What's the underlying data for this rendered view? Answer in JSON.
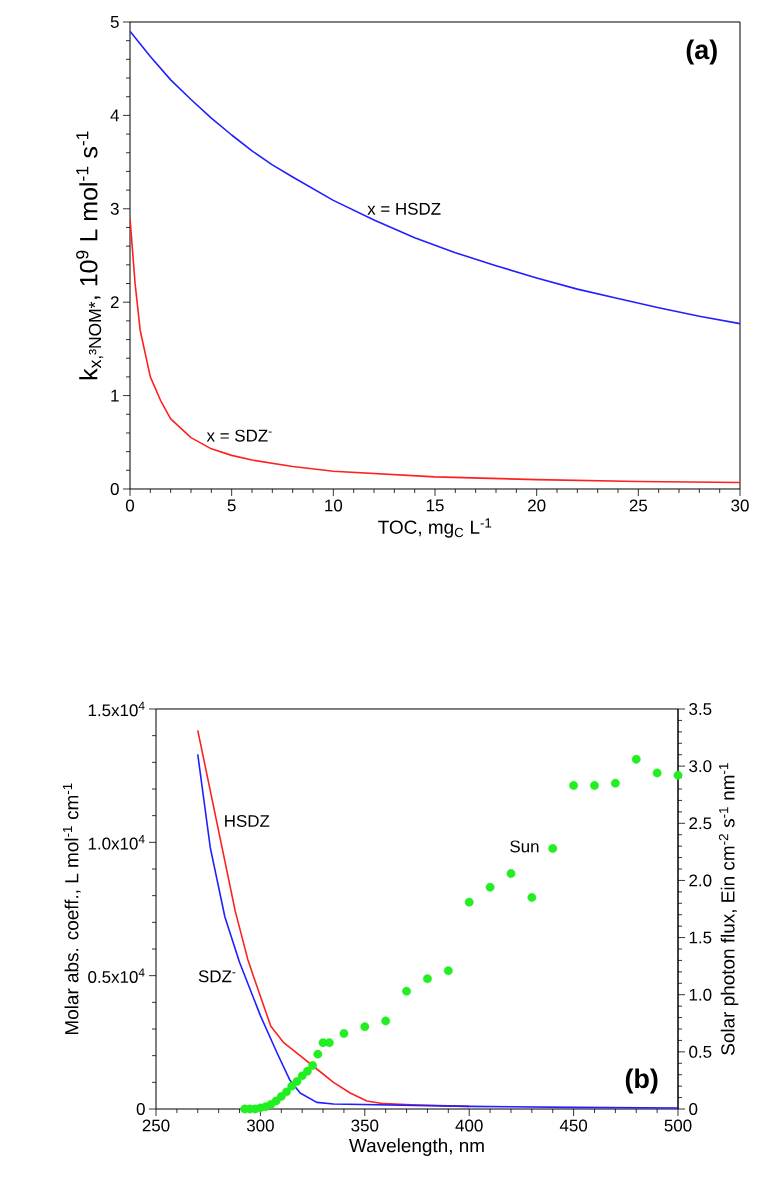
{
  "chart_data": [
    {
      "type": "line",
      "xlabel": "TOC, mg$_{C}$ L$^{-1}$",
      "ylabel": "k$_{x,³NOM*}$, 10$^{9}$ L mol$^{-1}$ s$^{-1}$",
      "xlim": [
        0,
        30
      ],
      "ylim": [
        0,
        5
      ],
      "xticks": [
        0,
        5,
        10,
        15,
        20,
        25,
        30
      ],
      "yticks": [
        0,
        1,
        2,
        3,
        4,
        5
      ],
      "annotations": [
        "(a)"
      ],
      "series": [
        {
          "name": "x = HSDZ",
          "color": "#2020ff",
          "x": [
            0,
            1,
            2,
            3,
            4,
            5,
            6,
            7,
            8,
            10,
            12,
            14,
            16,
            18,
            20,
            22,
            24,
            26,
            28,
            30
          ],
          "values": [
            4.9,
            4.63,
            4.38,
            4.17,
            3.97,
            3.79,
            3.62,
            3.47,
            3.34,
            3.09,
            2.88,
            2.69,
            2.53,
            2.39,
            2.26,
            2.14,
            2.04,
            1.94,
            1.85,
            1.77
          ]
        },
        {
          "name": "x = SDZ$^{-}$",
          "color": "#ff2020",
          "x": [
            0,
            0.25,
            0.5,
            1,
            1.5,
            2,
            3,
            4,
            5,
            6,
            8,
            10,
            15,
            20,
            25,
            30
          ],
          "values": [
            2.9,
            2.2,
            1.7,
            1.2,
            0.95,
            0.75,
            0.55,
            0.43,
            0.36,
            0.31,
            0.24,
            0.19,
            0.13,
            0.1,
            0.08,
            0.07
          ]
        }
      ]
    },
    {
      "type": "line",
      "xlabel": "Wavelength, nm",
      "ylabel": "Molar abs. coeff., L mol$^{-1}$ cm$^{-1}$",
      "y2label": "Solar photon flux, Ein cm$^{-2}$ s$^{-1}$ nm$^{-1}$",
      "xlim": [
        250,
        500
      ],
      "ylim": [
        0,
        15000
      ],
      "y2lim": [
        0,
        3.5
      ],
      "xticks": [
        250,
        300,
        350,
        400,
        450,
        500
      ],
      "yticks": [
        0,
        {
          "value": 5000,
          "label": "0.5x10$^{4}$"
        },
        {
          "value": 10000,
          "label": "1.0x10$^{4}$"
        },
        {
          "value": 15000,
          "label": "1.5x10$^{4}$"
        }
      ],
      "y2ticks": [
        0,
        0.5,
        {
          "value": 1,
          "label": "1.0"
        },
        1.5,
        {
          "value": 2,
          "label": "2.0"
        },
        2.5,
        {
          "value": 3,
          "label": "3.0"
        },
        3.5
      ],
      "annotations": [
        "(b)"
      ],
      "series": [
        {
          "name": "HSDZ",
          "color": "#ff2020",
          "x": [
            270,
            279,
            288,
            294,
            297,
            305,
            311,
            319,
            327,
            335,
            343,
            351,
            359,
            375,
            400
          ],
          "values": [
            14200,
            10800,
            7400,
            5600,
            4900,
            3100,
            2500,
            2000,
            1500,
            1000,
            600,
            300,
            200,
            150,
            100
          ]
        },
        {
          "name": "SDZ$^{-}$",
          "color": "#2020ff",
          "x": [
            270,
            276,
            283,
            290,
            300,
            308,
            314,
            319,
            327,
            335,
            400,
            450,
            500
          ],
          "values": [
            13300,
            9800,
            7200,
            5500,
            3500,
            2100,
            1100,
            600,
            250,
            190,
            100,
            60,
            40
          ]
        },
        {
          "name": "Sun",
          "type": "scatter",
          "axis": "y2",
          "color": "#22ee22",
          "x": [
            292.5,
            295,
            297.5,
            300,
            302.5,
            305,
            307.5,
            310,
            312.5,
            315,
            317.5,
            320,
            322.5,
            325,
            327.5,
            330,
            333,
            340,
            350,
            360,
            370,
            380,
            390,
            400,
            410,
            420,
            430,
            440,
            450,
            460,
            470,
            480,
            490,
            500
          ],
          "values": [
            0,
            0,
            0,
            0.01,
            0.02,
            0.04,
            0.07,
            0.11,
            0.15,
            0.2,
            0.24,
            0.29,
            0.33,
            0.38,
            0.48,
            0.58,
            0.58,
            0.66,
            0.72,
            0.77,
            1.03,
            1.14,
            1.21,
            1.81,
            1.94,
            2.06,
            1.85,
            2.28,
            2.83,
            2.83,
            2.85,
            3.06,
            2.94,
            2.92
          ]
        }
      ]
    }
  ]
}
